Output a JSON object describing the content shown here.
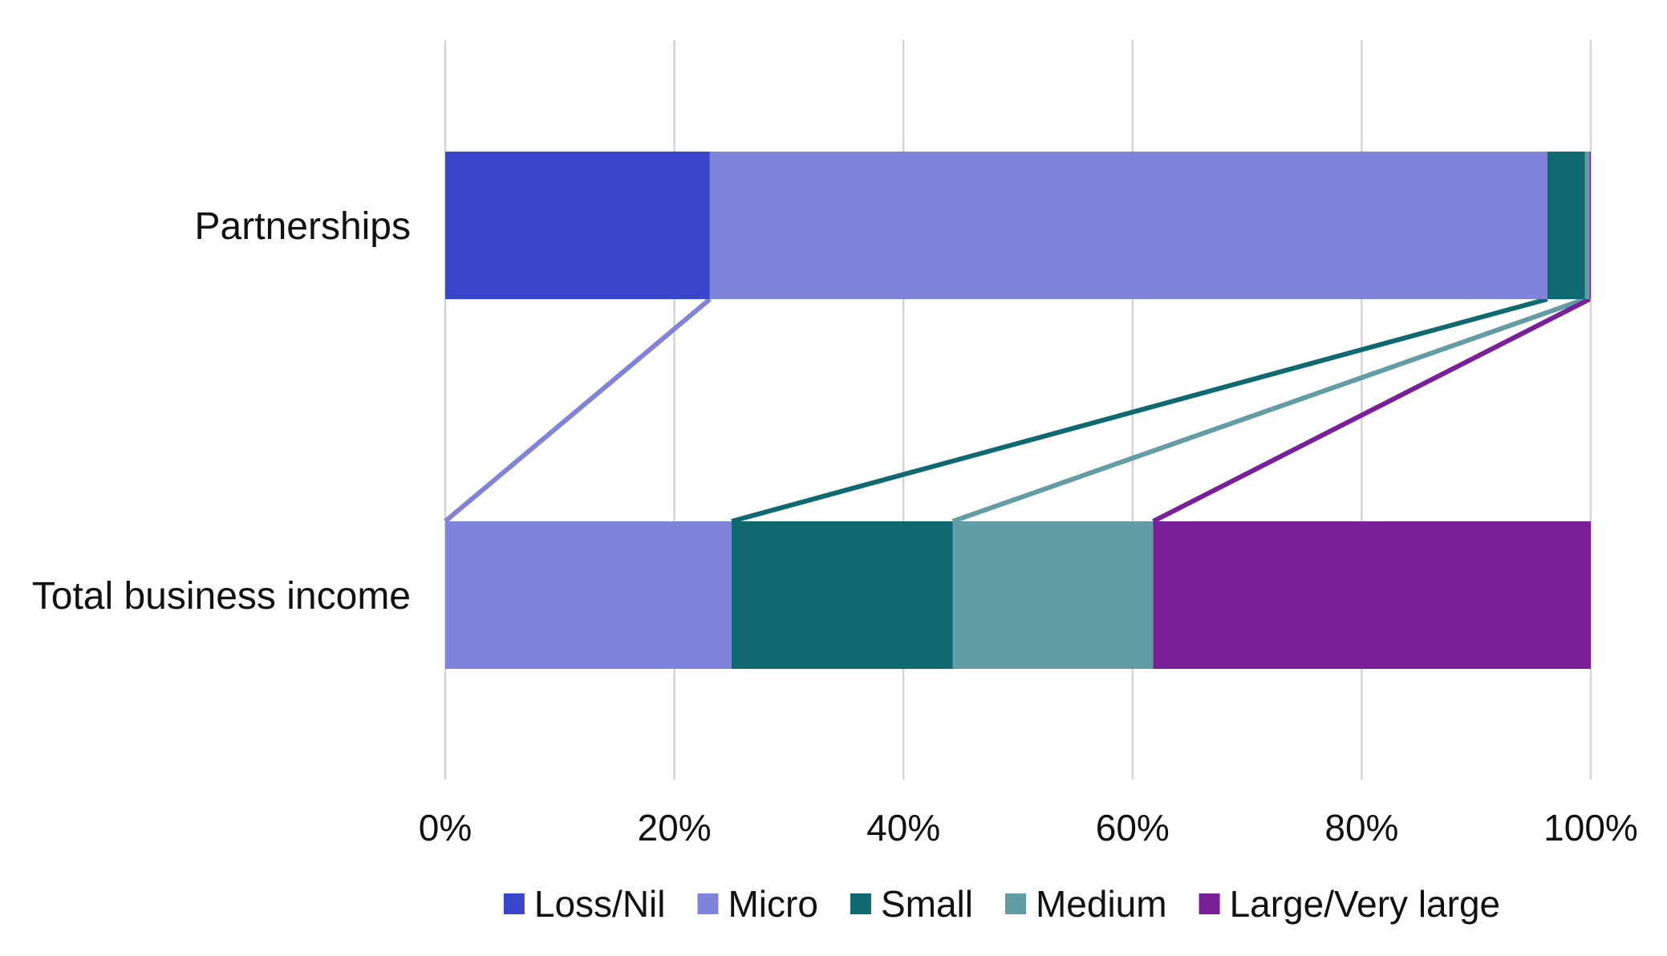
{
  "chart_data": {
    "type": "bar",
    "orientation": "horizontal",
    "stacked": "percent",
    "categories": [
      "Partnerships",
      "Total business income"
    ],
    "series": [
      {
        "name": "Loss/Nil",
        "color": "#3a46c9",
        "values": [
          23.1,
          0.0
        ]
      },
      {
        "name": "Micro",
        "color": "#7f84da",
        "values": [
          73.1,
          25.0
        ]
      },
      {
        "name": "Small",
        "color": "#0e6a70",
        "values": [
          3.3,
          19.3
        ]
      },
      {
        "name": "Medium",
        "color": "#629ca4",
        "values": [
          0.4,
          17.5
        ]
      },
      {
        "name": "Large/Very large",
        "color": "#781f99",
        "values": [
          0.1,
          38.2
        ]
      }
    ],
    "connectors": [
      {
        "series": "Micro",
        "from_category": "Partnerships",
        "to_category": "Total business income"
      },
      {
        "series": "Small",
        "from_category": "Partnerships",
        "to_category": "Total business income"
      },
      {
        "series": "Medium",
        "from_category": "Partnerships",
        "to_category": "Total business income"
      },
      {
        "series": "Large/Very large",
        "from_category": "Partnerships",
        "to_category": "Total business income"
      }
    ],
    "xlim": [
      0,
      100
    ],
    "xticks": [
      0,
      20,
      40,
      60,
      80,
      100
    ],
    "xtick_labels": [
      "0%",
      "20%",
      "40%",
      "60%",
      "80%",
      "100%"
    ],
    "title": "",
    "xlabel": "",
    "ylabel": "",
    "grid": "vertical",
    "legend_position": "bottom"
  }
}
